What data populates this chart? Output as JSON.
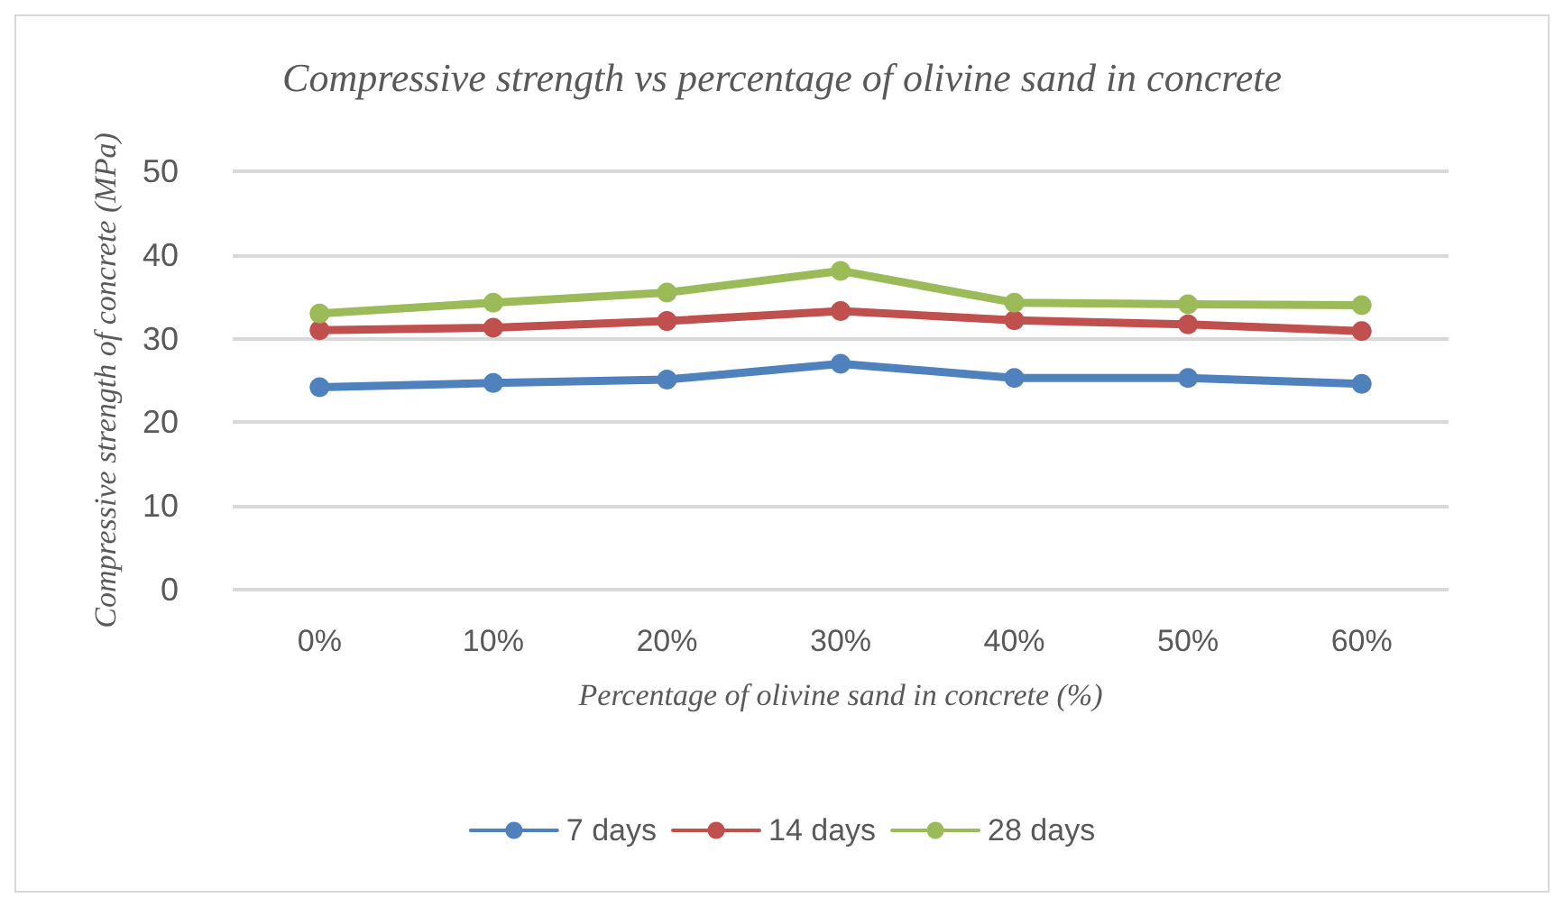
{
  "chart_data": {
    "type": "line",
    "title": "Compressive strength vs percentage of olivine sand in concrete",
    "xlabel": "Percentage of olivine sand in concrete (%)",
    "ylabel": "Compressive strength of concrete (MPa)",
    "categories": [
      "0%",
      "10%",
      "20%",
      "30%",
      "40%",
      "50%",
      "60%"
    ],
    "series": [
      {
        "name": "7 days",
        "color": "#4f81bd",
        "values": [
          24.2,
          24.7,
          25.1,
          27.0,
          25.3,
          25.3,
          24.6
        ]
      },
      {
        "name": "14 days",
        "color": "#c0504d",
        "values": [
          31.0,
          31.3,
          32.1,
          33.3,
          32.2,
          31.7,
          30.9
        ]
      },
      {
        "name": "28 days",
        "color": "#9bbb59",
        "values": [
          33.0,
          34.3,
          35.5,
          38.1,
          34.3,
          34.1,
          34.0
        ]
      }
    ],
    "ylim": [
      0,
      50
    ],
    "yticks": [
      0,
      10,
      20,
      30,
      40,
      50
    ],
    "grid": "y",
    "legend": "bottom",
    "marker": "circle",
    "line_style": "solid"
  }
}
